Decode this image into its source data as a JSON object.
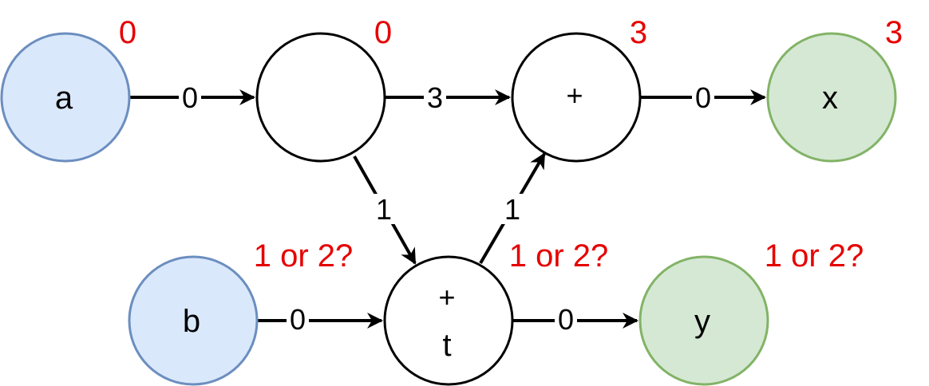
{
  "colors": {
    "input_fill": "#dae8fc",
    "input_stroke": "#6c8ebf",
    "output_fill": "#d5e8d4",
    "output_stroke": "#82b366",
    "plain_fill": "#ffffff",
    "plain_stroke": "#000000",
    "timing": "#e60000"
  },
  "nodes": {
    "a": {
      "label": "a",
      "timing": "0"
    },
    "n1": {
      "label": "",
      "timing": "0"
    },
    "plus_x": {
      "label": "+",
      "timing": "3"
    },
    "x": {
      "label": "x",
      "timing": "3"
    },
    "b": {
      "label": "b",
      "timing": "1 or 2?"
    },
    "plus_t": {
      "label_top": "+",
      "label_bottom": "t",
      "timing": "1 or 2?"
    },
    "y": {
      "label": "y",
      "timing": "1 or 2?"
    }
  },
  "edges": {
    "a_to_n1": "0",
    "n1_to_plus_x": "3",
    "plus_x_to_x": "0",
    "n1_to_plus_t": "1",
    "plus_t_to_plus_x": "1",
    "b_to_plus_t": "0",
    "plus_t_to_y": "0"
  }
}
